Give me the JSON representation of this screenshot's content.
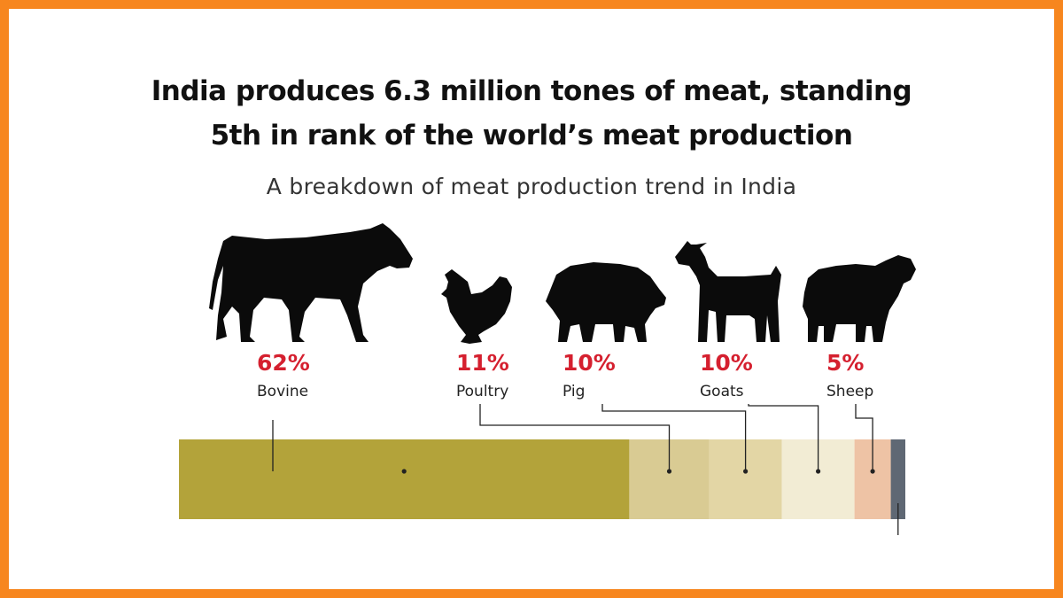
{
  "title_line1": "India produces 6.3 million tones of meat, standing",
  "title_line2": "5th in rank of the world’s meat production",
  "subtitle": "A breakdown of meat production trend in India",
  "colors": {
    "frame": "#f7861e",
    "percent_text": "#d5202f",
    "segments": [
      "#b3a33a",
      "#d9cb93",
      "#e3d6a5",
      "#f2ecd4",
      "#eec3a5",
      "#5f6874"
    ]
  },
  "chart_data": {
    "type": "bar",
    "subtype": "stacked-100",
    "categories": [
      "Bovine",
      "Poultry",
      "Pig",
      "Goats",
      "Sheep",
      ""
    ],
    "values": [
      62,
      11,
      10,
      10,
      5,
      2
    ],
    "percent_labels": [
      "62%",
      "11%",
      "10%",
      "10%",
      "5%",
      ""
    ],
    "icons": [
      "cow-icon",
      "chicken-icon",
      "pig-icon",
      "goat-icon",
      "sheep-icon",
      ""
    ],
    "title": "India produces 6.3 million tones of meat, standing 5th in rank of the world’s meat production",
    "subtitle": "A breakdown of meat production trend in India",
    "xlabel": "",
    "ylabel": "",
    "xlim": [
      0,
      100
    ],
    "grid": false,
    "legend": "none"
  }
}
